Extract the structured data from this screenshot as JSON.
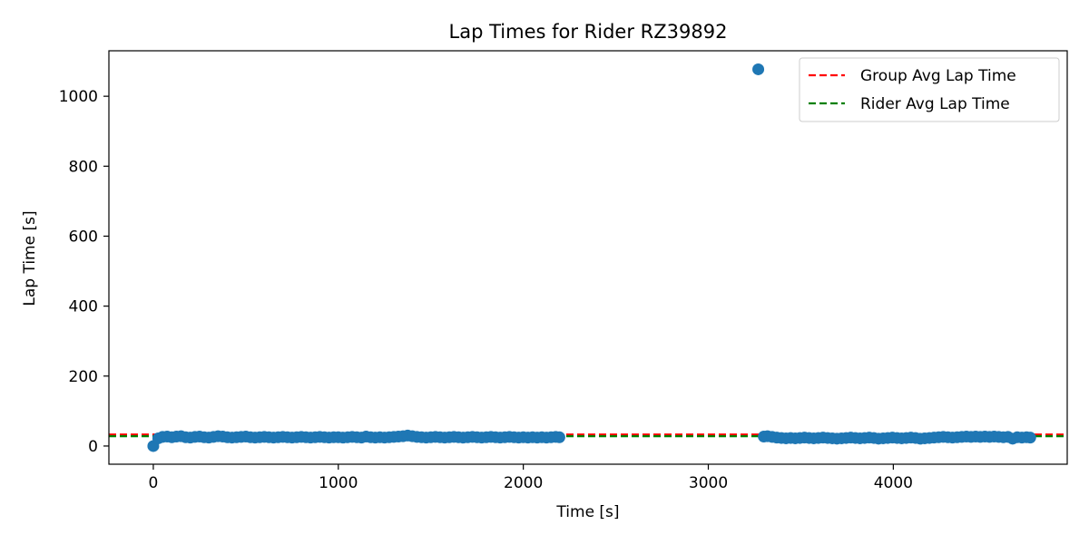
{
  "chart_data": {
    "type": "scatter",
    "title": "Lap Times for Rider RZ39892",
    "xlabel": "Time [s]",
    "ylabel": "Lap Time [s]",
    "xlim": [
      -240,
      4940
    ],
    "ylim": [
      -52,
      1130
    ],
    "xticks": [
      0,
      1000,
      2000,
      3000,
      4000
    ],
    "yticks": [
      0,
      200,
      400,
      600,
      800,
      1000
    ],
    "grid": false,
    "legend_position": "top-right",
    "colors": {
      "points": "#1f77b4",
      "group_avg": "#ff0000",
      "rider_avg": "#008000"
    },
    "reference_lines": [
      {
        "name": "Group Avg Lap Time",
        "y": 33,
        "style": "dashed",
        "color": "#ff0000"
      },
      {
        "name": "Rider Avg Lap Time",
        "y": 28,
        "style": "dashed",
        "color": "#008000"
      }
    ],
    "series": [
      {
        "points": [
          [
            0,
            0
          ],
          [
            27,
            22
          ],
          [
            50,
            26
          ],
          [
            75,
            27
          ],
          [
            100,
            25
          ],
          [
            125,
            27
          ],
          [
            150,
            28
          ],
          [
            175,
            25
          ],
          [
            200,
            24
          ],
          [
            225,
            26
          ],
          [
            250,
            27
          ],
          [
            275,
            25
          ],
          [
            300,
            24
          ],
          [
            325,
            26
          ],
          [
            350,
            28
          ],
          [
            375,
            27
          ],
          [
            400,
            25
          ],
          [
            425,
            24
          ],
          [
            450,
            25
          ],
          [
            475,
            26
          ],
          [
            500,
            27
          ],
          [
            525,
            25
          ],
          [
            550,
            24
          ],
          [
            575,
            25
          ],
          [
            600,
            26
          ],
          [
            625,
            25
          ],
          [
            650,
            24
          ],
          [
            675,
            25
          ],
          [
            700,
            26
          ],
          [
            725,
            25
          ],
          [
            750,
            24
          ],
          [
            775,
            25
          ],
          [
            800,
            26
          ],
          [
            825,
            25
          ],
          [
            850,
            24
          ],
          [
            875,
            25
          ],
          [
            900,
            26
          ],
          [
            925,
            25
          ],
          [
            950,
            24
          ],
          [
            975,
            25
          ],
          [
            1000,
            25
          ],
          [
            1025,
            24
          ],
          [
            1050,
            25
          ],
          [
            1075,
            26
          ],
          [
            1100,
            25
          ],
          [
            1125,
            24
          ],
          [
            1150,
            27
          ],
          [
            1175,
            25
          ],
          [
            1200,
            24
          ],
          [
            1225,
            25
          ],
          [
            1250,
            24
          ],
          [
            1275,
            25
          ],
          [
            1300,
            26
          ],
          [
            1325,
            27
          ],
          [
            1350,
            28
          ],
          [
            1375,
            30
          ],
          [
            1400,
            28
          ],
          [
            1425,
            26
          ],
          [
            1450,
            25
          ],
          [
            1475,
            24
          ],
          [
            1500,
            25
          ],
          [
            1525,
            26
          ],
          [
            1550,
            25
          ],
          [
            1575,
            24
          ],
          [
            1600,
            25
          ],
          [
            1625,
            26
          ],
          [
            1650,
            25
          ],
          [
            1675,
            24
          ],
          [
            1700,
            25
          ],
          [
            1725,
            26
          ],
          [
            1750,
            25
          ],
          [
            1775,
            24
          ],
          [
            1800,
            25
          ],
          [
            1825,
            26
          ],
          [
            1850,
            25
          ],
          [
            1875,
            24
          ],
          [
            1900,
            25
          ],
          [
            1925,
            26
          ],
          [
            1950,
            25
          ],
          [
            1975,
            24
          ],
          [
            2000,
            25
          ],
          [
            2025,
            24
          ],
          [
            2050,
            25
          ],
          [
            2075,
            24
          ],
          [
            2100,
            25
          ],
          [
            2125,
            24
          ],
          [
            2150,
            25
          ],
          [
            2175,
            26
          ],
          [
            2195,
            25
          ],
          [
            3270,
            1077
          ],
          [
            3300,
            27
          ],
          [
            3320,
            28
          ],
          [
            3345,
            26
          ],
          [
            3370,
            24
          ],
          [
            3395,
            23
          ],
          [
            3420,
            22
          ],
          [
            3445,
            23
          ],
          [
            3470,
            22
          ],
          [
            3495,
            23
          ],
          [
            3520,
            24
          ],
          [
            3545,
            23
          ],
          [
            3570,
            22
          ],
          [
            3595,
            23
          ],
          [
            3620,
            24
          ],
          [
            3645,
            23
          ],
          [
            3670,
            22
          ],
          [
            3695,
            21
          ],
          [
            3720,
            22
          ],
          [
            3745,
            23
          ],
          [
            3770,
            24
          ],
          [
            3795,
            23
          ],
          [
            3820,
            22
          ],
          [
            3845,
            23
          ],
          [
            3870,
            24
          ],
          [
            3895,
            23
          ],
          [
            3920,
            21
          ],
          [
            3945,
            22
          ],
          [
            3970,
            23
          ],
          [
            3995,
            24
          ],
          [
            4020,
            23
          ],
          [
            4045,
            22
          ],
          [
            4070,
            23
          ],
          [
            4095,
            24
          ],
          [
            4120,
            23
          ],
          [
            4145,
            21
          ],
          [
            4170,
            22
          ],
          [
            4195,
            23
          ],
          [
            4220,
            24
          ],
          [
            4245,
            25
          ],
          [
            4270,
            26
          ],
          [
            4295,
            25
          ],
          [
            4320,
            24
          ],
          [
            4345,
            25
          ],
          [
            4370,
            26
          ],
          [
            4395,
            27
          ],
          [
            4420,
            26
          ],
          [
            4445,
            27
          ],
          [
            4470,
            26
          ],
          [
            4495,
            27
          ],
          [
            4520,
            26
          ],
          [
            4545,
            27
          ],
          [
            4570,
            26
          ],
          [
            4595,
            25
          ],
          [
            4620,
            26
          ],
          [
            4645,
            21
          ],
          [
            4670,
            25
          ],
          [
            4695,
            24
          ],
          [
            4720,
            25
          ],
          [
            4740,
            24
          ]
        ]
      }
    ]
  }
}
